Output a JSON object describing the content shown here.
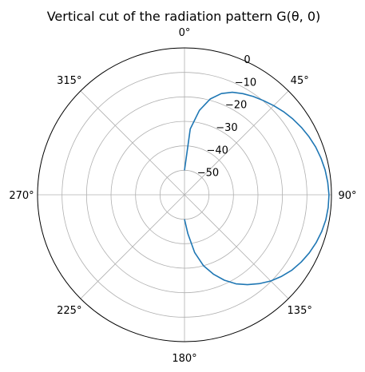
{
  "chart_data": {
    "type": "line",
    "projection": "polar",
    "title": "Vertical cut of the radiation pattern G(θ, 0)",
    "theta_zero_location": "top",
    "theta_direction": "clockwise",
    "angular_ticks": [
      "0°",
      "45°",
      "90°",
      "135°",
      "180°",
      "225°",
      "270°",
      "315°"
    ],
    "angular_tick_values": [
      0,
      45,
      90,
      135,
      180,
      225,
      270,
      315
    ],
    "radial_ticks": [
      "−50",
      "−40",
      "−30",
      "−20",
      "−10",
      "0"
    ],
    "radial_tick_values": [
      -50,
      -40,
      -30,
      -20,
      -10,
      0
    ],
    "rlim": [
      -60,
      0
    ],
    "grid": true,
    "series": [
      {
        "color": "#1f77b4",
        "theta_deg": [
          0,
          5,
          10,
          15,
          20,
          25,
          30,
          35,
          40,
          45,
          50,
          55,
          60,
          65,
          70,
          75,
          80,
          85,
          90,
          95,
          100,
          105,
          110,
          115,
          120,
          125,
          130,
          135,
          140,
          145,
          150,
          155,
          160,
          165,
          170,
          175,
          180
        ],
        "r_db": [
          -50,
          -33,
          -25,
          -19.5,
          -16,
          -13.8,
          -12.3,
          -11,
          -9.8,
          -8.5,
          -7.2,
          -6,
          -4.9,
          -3.9,
          -3,
          -2.3,
          -1.7,
          -1.3,
          -1,
          -1.1,
          -1.4,
          -2,
          -2.8,
          -3.8,
          -5,
          -6.4,
          -8.2,
          -10.2,
          -12.6,
          -15.2,
          -18,
          -21.5,
          -25.5,
          -30,
          -36,
          -44,
          -50
        ]
      }
    ]
  }
}
